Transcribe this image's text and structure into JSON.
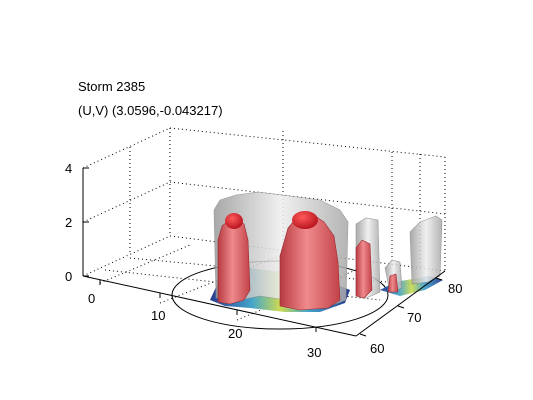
{
  "figure": {
    "title_line1": "Storm 2385",
    "title_line2": "(U,V) (3.0596,-0.043217)"
  },
  "colors": {
    "background": "#ffffff",
    "core_isosurface": "#d9545a",
    "core_top": "#cc1f2a",
    "envelope_isosurface": "#c8c8c8",
    "base_rainfall_low": "#1a2f8a",
    "base_rainfall_mid": "#3aa0c8",
    "base_rainfall_high": "#c9d94a",
    "grid_line": "#000000"
  },
  "chart_data": {
    "type": "3d-isosurface",
    "title": "Storm 2385",
    "subtitle": "(U,V) (3.0596,-0.043217)",
    "x_axis": {
      "ticks": [
        "0",
        "10",
        "20",
        "30"
      ],
      "range": [
        -5,
        32
      ]
    },
    "y_axis": {
      "ticks": [
        "60",
        "70",
        "80"
      ],
      "range": [
        58,
        82
      ]
    },
    "z_axis": {
      "ticks": [
        "0",
        "2",
        "4"
      ],
      "range": [
        0,
        4
      ]
    },
    "grid": true,
    "box": "dotted",
    "cores": [
      {
        "x": 13,
        "y": 64,
        "height": 2.3
      },
      {
        "x": 21,
        "y": 66,
        "height": 2.4
      },
      {
        "x": 24,
        "y": 69,
        "height": 1.3
      },
      {
        "x": 28,
        "y": 72,
        "height": 0.5
      }
    ]
  }
}
